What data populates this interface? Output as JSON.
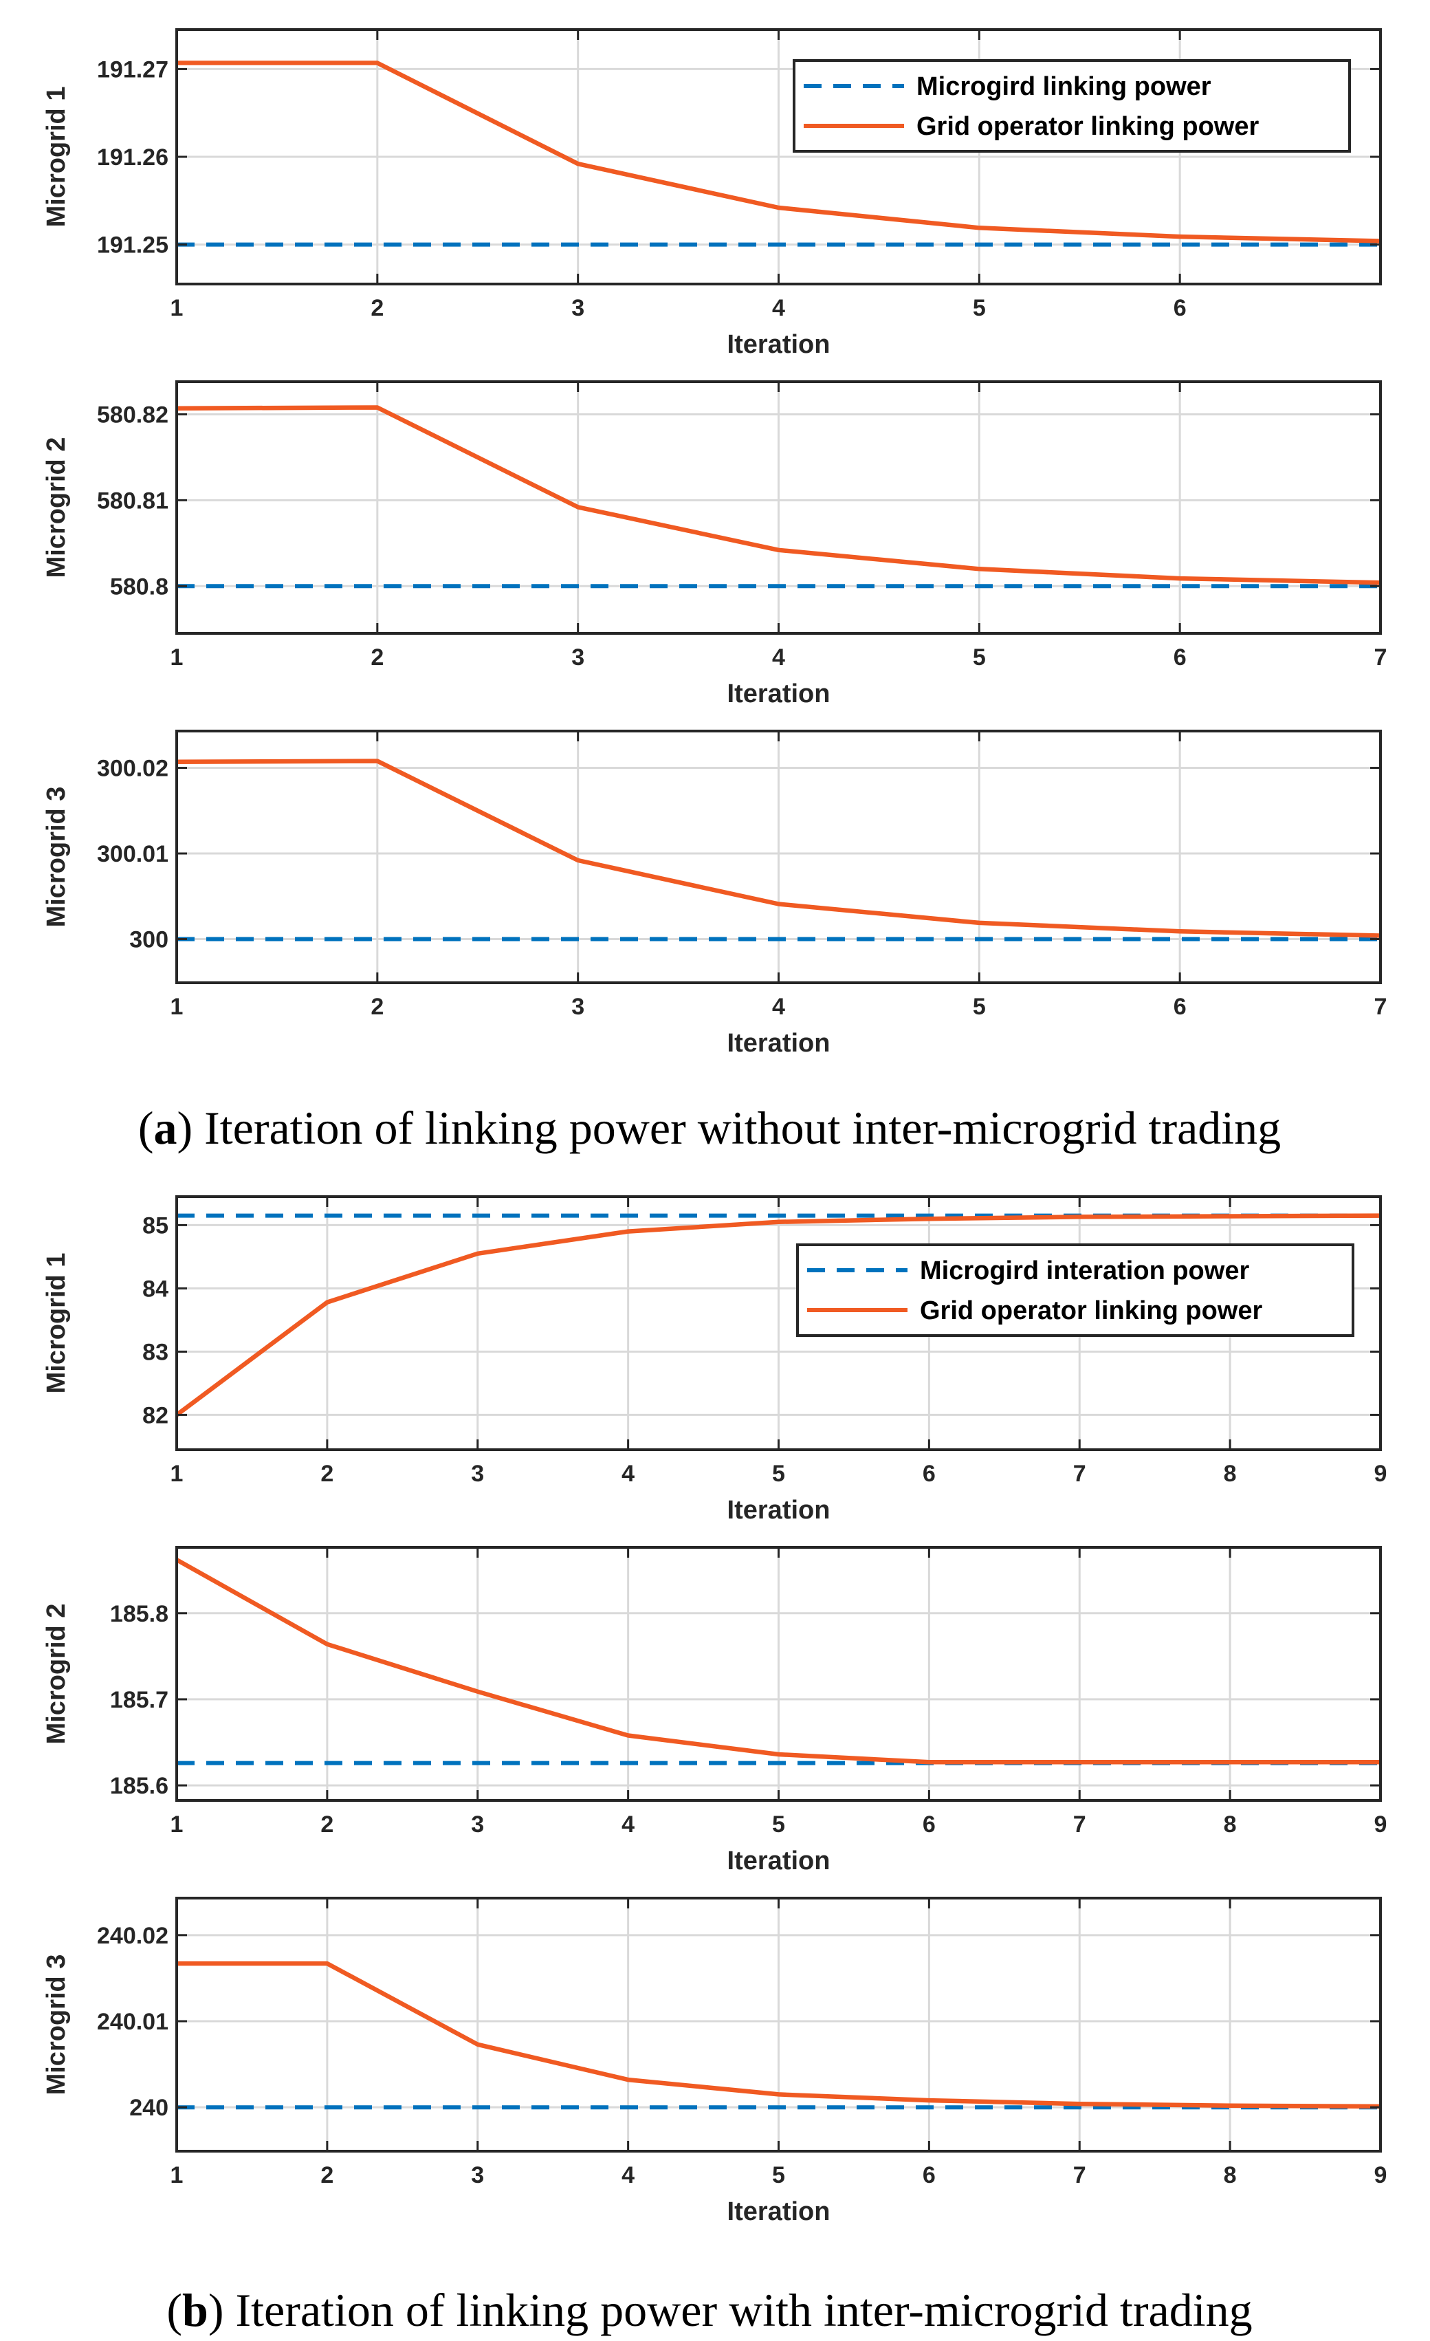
{
  "colors": {
    "dashed_series": "#0072BD",
    "solid_series": "#F05A22",
    "grid": "#D9D9D9",
    "axes": "#262626"
  },
  "captions": {
    "a": {
      "label": "a",
      "text": " Iteration of linking power without inter-microgrid trading"
    },
    "b": {
      "label": "b",
      "text": " Iteration of linking power with inter-microgrid trading"
    }
  },
  "chart_data": [
    {
      "id": "a1",
      "type": "line",
      "group": "a",
      "ylabel": "Microgrid 1",
      "xlabel": "Iteration",
      "xlim": [
        1,
        7
      ],
      "ylim": [
        191.2455,
        191.2745
      ],
      "xticks": [
        1,
        2,
        3,
        4,
        5,
        6
      ],
      "xticklabels": [
        "1",
        "2",
        "3",
        "4",
        "5",
        "6"
      ],
      "yticks": [
        191.25,
        191.26,
        191.27
      ],
      "yticklabels": [
        "191.25",
        "191.26",
        "191.27"
      ],
      "legend": {
        "location": "top-right"
      },
      "series": [
        {
          "name": "Microgird linking power",
          "style": "dashed",
          "x": [
            1,
            7
          ],
          "y": [
            191.25,
            191.25
          ]
        },
        {
          "name": "Grid operator linking power",
          "style": "solid",
          "x": [
            1,
            2,
            3,
            4,
            5,
            6,
            7
          ],
          "y": [
            191.2707,
            191.2707,
            191.2592,
            191.2542,
            191.2519,
            191.2509,
            191.2504
          ]
        }
      ]
    },
    {
      "id": "a2",
      "type": "line",
      "group": "a",
      "ylabel": "Microgrid 2",
      "xlabel": "Iteration",
      "xlim": [
        1,
        7
      ],
      "ylim": [
        580.7945,
        580.8238
      ],
      "xticks": [
        1,
        2,
        3,
        4,
        5,
        6,
        7
      ],
      "xticklabels": [
        "1",
        "2",
        "3",
        "4",
        "5",
        "6",
        "7"
      ],
      "yticks": [
        580.8,
        580.81,
        580.82
      ],
      "yticklabels": [
        "580.8",
        "580.81",
        "580.82"
      ],
      "series": [
        {
          "name": "Microgird linking power",
          "style": "dashed",
          "x": [
            1,
            7
          ],
          "y": [
            580.8,
            580.8
          ]
        },
        {
          "name": "Grid operator linking power",
          "style": "solid",
          "x": [
            1,
            2,
            3,
            4,
            5,
            6,
            7
          ],
          "y": [
            580.8207,
            580.8208,
            580.8092,
            580.8042,
            580.802,
            580.8009,
            580.8004
          ]
        }
      ]
    },
    {
      "id": "a3",
      "type": "line",
      "group": "a",
      "ylabel": "Microgrid 3",
      "xlabel": "Iteration",
      "xlim": [
        1,
        7
      ],
      "ylim": [
        299.9949,
        300.0243
      ],
      "xticks": [
        1,
        2,
        3,
        4,
        5,
        6,
        7
      ],
      "xticklabels": [
        "1",
        "2",
        "3",
        "4",
        "5",
        "6",
        "7"
      ],
      "yticks": [
        300,
        300.01,
        300.02
      ],
      "yticklabels": [
        "300",
        "300.01",
        "300.02"
      ],
      "series": [
        {
          "name": "Microgird linking power",
          "style": "dashed",
          "x": [
            1,
            7
          ],
          "y": [
            300,
            300
          ]
        },
        {
          "name": "Grid operator linking power",
          "style": "solid",
          "x": [
            1,
            2,
            3,
            4,
            5,
            6,
            7
          ],
          "y": [
            300.0207,
            300.0208,
            300.0092,
            300.0041,
            300.0019,
            300.0009,
            300.0004
          ]
        }
      ]
    },
    {
      "id": "b1",
      "type": "line",
      "group": "b",
      "ylabel": "Microgrid 1",
      "xlabel": "Iteration",
      "xlim": [
        1,
        9
      ],
      "ylim": [
        81.45,
        85.45
      ],
      "xticks": [
        1,
        2,
        3,
        4,
        5,
        6,
        7,
        8,
        9
      ],
      "xticklabels": [
        "1",
        "2",
        "3",
        "4",
        "5",
        "6",
        "7",
        "8",
        "9"
      ],
      "yticks": [
        82,
        83,
        84,
        85
      ],
      "yticklabels": [
        "82",
        "83",
        "84",
        "85"
      ],
      "legend": {
        "location": "upper-right"
      },
      "series": [
        {
          "name": "Microgird interation power",
          "style": "dashed",
          "x": [
            1,
            9
          ],
          "y": [
            85.15,
            85.15
          ]
        },
        {
          "name": "Grid operator linking power",
          "style": "solid",
          "x": [
            1,
            2,
            3,
            4,
            5,
            6,
            7,
            8,
            9
          ],
          "y": [
            82.0,
            83.78,
            84.55,
            84.9,
            85.05,
            85.1,
            85.13,
            85.14,
            85.15
          ]
        }
      ]
    },
    {
      "id": "b2",
      "type": "line",
      "group": "b",
      "ylabel": "Microgrid 2",
      "xlabel": "Iteration",
      "xlim": [
        1,
        9
      ],
      "ylim": [
        185.5825,
        185.8765
      ],
      "xticks": [
        1,
        2,
        3,
        4,
        5,
        6,
        7,
        8,
        9
      ],
      "xticklabels": [
        "1",
        "2",
        "3",
        "4",
        "5",
        "6",
        "7",
        "8",
        "9"
      ],
      "yticks": [
        185.6,
        185.7,
        185.8
      ],
      "yticklabels": [
        "185.6",
        "185.7",
        "185.8"
      ],
      "series": [
        {
          "name": "Microgird interation power",
          "style": "dashed",
          "x": [
            1,
            9
          ],
          "y": [
            185.626,
            185.626
          ]
        },
        {
          "name": "Grid operator linking power",
          "style": "solid",
          "x": [
            1,
            2,
            3,
            4,
            5,
            6,
            7,
            8,
            9
          ],
          "y": [
            185.862,
            185.764,
            185.709,
            185.658,
            185.636,
            185.627,
            185.627,
            185.627,
            185.627
          ]
        }
      ]
    },
    {
      "id": "b3",
      "type": "line",
      "group": "b",
      "ylabel": "Microgrid 3",
      "xlabel": "Iteration",
      "xlim": [
        1,
        9
      ],
      "ylim": [
        239.9949,
        240.0243
      ],
      "xticks": [
        1,
        2,
        3,
        4,
        5,
        6,
        7,
        8,
        9
      ],
      "xticklabels": [
        "1",
        "2",
        "3",
        "4",
        "5",
        "6",
        "7",
        "8",
        "9"
      ],
      "yticks": [
        240,
        240.01,
        240.02
      ],
      "yticklabels": [
        "240",
        "240.01",
        "240.02"
      ],
      "series": [
        {
          "name": "Microgird interation power",
          "style": "dashed",
          "x": [
            1,
            9
          ],
          "y": [
            240,
            240
          ]
        },
        {
          "name": "Grid operator linking power",
          "style": "solid",
          "x": [
            1,
            2,
            3,
            4,
            5,
            6,
            7,
            8,
            9
          ],
          "y": [
            240.0167,
            240.0167,
            240.0073,
            240.0032,
            240.0015,
            240.0008,
            240.0004,
            240.0002,
            240.0001
          ]
        }
      ]
    }
  ]
}
